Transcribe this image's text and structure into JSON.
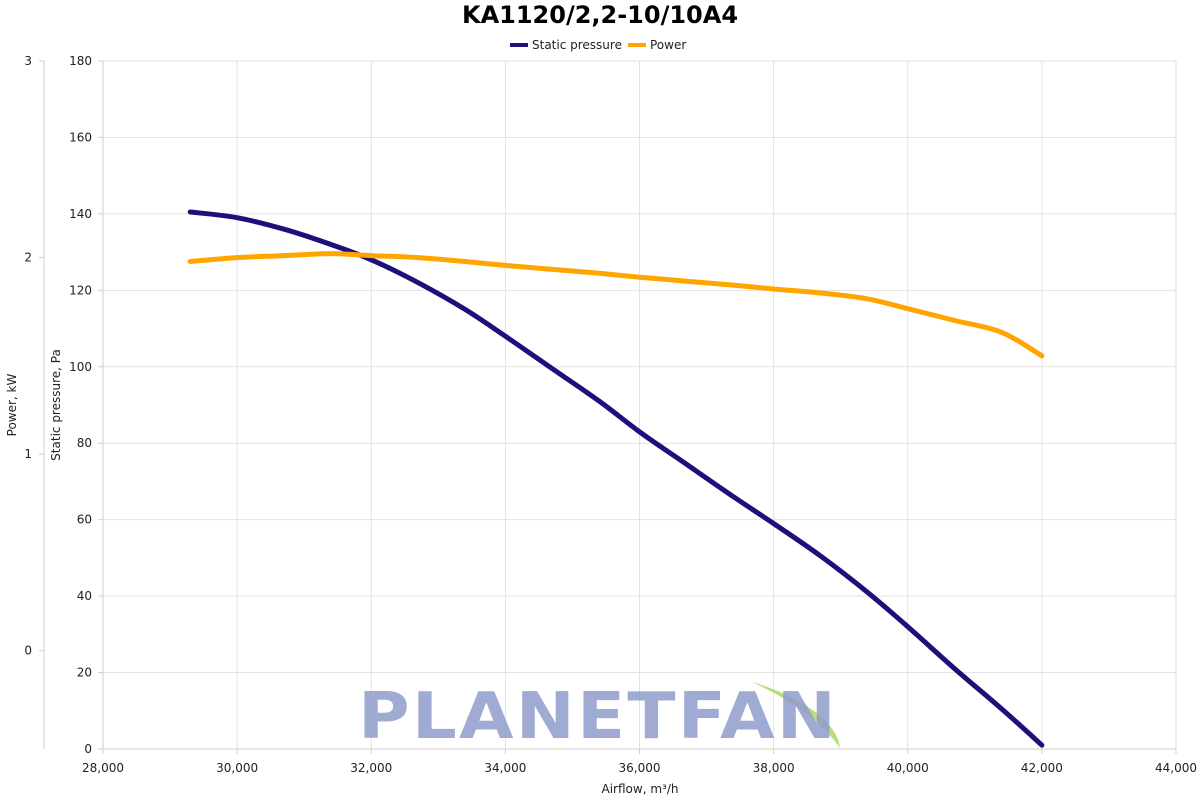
{
  "chart_data": {
    "type": "line",
    "title": "KA1120/2,2-10/10A4",
    "xlabel": "Airflow, m³/h",
    "ylabel_left_outer": "Power, kW",
    "ylabel_left_inner": "Static pressure, Pa",
    "xlim": [
      28000,
      44000
    ],
    "x_ticks": [
      "28,000",
      "30,000",
      "32,000",
      "34,000",
      "36,000",
      "38,000",
      "40,000",
      "42,000",
      "44,000"
    ],
    "x_tick_values": [
      28000,
      30000,
      32000,
      34000,
      36000,
      38000,
      40000,
      42000,
      44000
    ],
    "ylim_pressure": [
      0,
      180
    ],
    "pressure_ticks": [
      "0",
      "20",
      "40",
      "60",
      "80",
      "100",
      "120",
      "140",
      "160",
      "180"
    ],
    "pressure_tick_values": [
      0,
      20,
      40,
      60,
      80,
      100,
      120,
      140,
      160,
      180
    ],
    "ylim_power": [
      -0.5,
      3
    ],
    "power_ticks": [
      "0",
      "1",
      "2",
      "3"
    ],
    "power_tick_values": [
      0,
      1,
      2,
      3
    ],
    "grid": true,
    "legend_position": "top-center",
    "series": [
      {
        "name": "Static pressure",
        "axis": "pressure",
        "color": "#1e0f7a",
        "x": [
          29300,
          30000,
          30700,
          31400,
          32000,
          32700,
          33400,
          34000,
          34700,
          35400,
          36000,
          36700,
          37400,
          38000,
          38700,
          39400,
          40000,
          40700,
          41400,
          42000
        ],
        "y": [
          140.5,
          139,
          136,
          132,
          128,
          122,
          115,
          108,
          99.5,
          91,
          83,
          74.5,
          66,
          59,
          50.5,
          41,
          32,
          21,
          10.5,
          1
        ]
      },
      {
        "name": "Power",
        "axis": "power",
        "color": "#ffa500",
        "x": [
          29300,
          30000,
          30700,
          31400,
          32000,
          32700,
          33400,
          34000,
          34700,
          35400,
          36000,
          36700,
          37400,
          38000,
          38700,
          39400,
          40000,
          40700,
          41400,
          42000
        ],
        "y": [
          1.98,
          2.0,
          2.01,
          2.02,
          2.01,
          2.0,
          1.98,
          1.96,
          1.94,
          1.92,
          1.9,
          1.88,
          1.86,
          1.84,
          1.82,
          1.79,
          1.74,
          1.68,
          1.62,
          1.5
        ]
      }
    ]
  },
  "watermark": {
    "text": "PLANETFAN",
    "text_color": "#8f9dcc",
    "leaf_color": "#b9dd7e"
  }
}
